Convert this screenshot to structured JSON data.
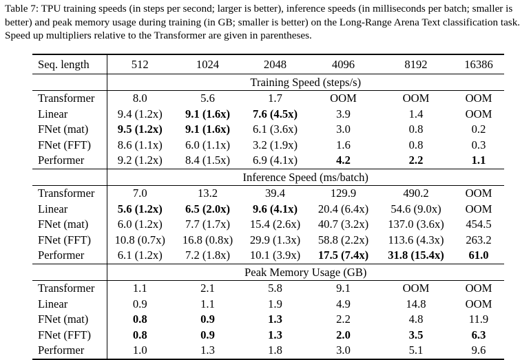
{
  "caption": "Table 7: TPU training speeds (in steps per second; larger is better), inference speeds (in milliseconds per batch; smaller is better) and peak memory usage during training (in GB; smaller is better) on the Long-Range Arena Text classification task. Speed up multipliers relative to the Transformer are given in parentheses.",
  "header": {
    "label": "Seq. length",
    "columns": [
      "512",
      "1024",
      "2048",
      "4096",
      "8192",
      "16386"
    ]
  },
  "sections": [
    {
      "title": "Training Speed (steps/s)",
      "rows": [
        {
          "model": "Transformer",
          "cells": [
            {
              "v": "8.0",
              "b": false
            },
            {
              "v": "5.6",
              "b": false
            },
            {
              "v": "1.7",
              "b": false
            },
            {
              "v": "OOM",
              "b": false
            },
            {
              "v": "OOM",
              "b": false
            },
            {
              "v": "OOM",
              "b": false
            }
          ]
        },
        {
          "model": "Linear",
          "cells": [
            {
              "v": "9.4 (1.2x)",
              "b": false
            },
            {
              "v": "9.1 (1.6x)",
              "b": true
            },
            {
              "v": "7.6 (4.5x)",
              "b": true
            },
            {
              "v": "3.9",
              "b": false
            },
            {
              "v": "1.4",
              "b": false
            },
            {
              "v": "OOM",
              "b": false
            }
          ]
        },
        {
          "model": "FNet (mat)",
          "cells": [
            {
              "v": "9.5 (1.2x)",
              "b": true
            },
            {
              "v": "9.1 (1.6x)",
              "b": true
            },
            {
              "v": "6.1 (3.6x)",
              "b": false
            },
            {
              "v": "3.0",
              "b": false
            },
            {
              "v": "0.8",
              "b": false
            },
            {
              "v": "0.2",
              "b": false
            }
          ]
        },
        {
          "model": "FNet (FFT)",
          "cells": [
            {
              "v": "8.6 (1.1x)",
              "b": false
            },
            {
              "v": "6.0 (1.1x)",
              "b": false
            },
            {
              "v": "3.2 (1.9x)",
              "b": false
            },
            {
              "v": "1.6",
              "b": false
            },
            {
              "v": "0.8",
              "b": false
            },
            {
              "v": "0.3",
              "b": false
            }
          ]
        },
        {
          "model": "Performer",
          "cells": [
            {
              "v": "9.2 (1.2x)",
              "b": false
            },
            {
              "v": "8.4 (1.5x)",
              "b": false
            },
            {
              "v": "6.9 (4.1x)",
              "b": false
            },
            {
              "v": "4.2",
              "b": true
            },
            {
              "v": "2.2",
              "b": true
            },
            {
              "v": "1.1",
              "b": true
            }
          ]
        }
      ]
    },
    {
      "title": "Inference Speed (ms/batch)",
      "rows": [
        {
          "model": "Transformer",
          "cells": [
            {
              "v": "7.0",
              "b": false
            },
            {
              "v": "13.2",
              "b": false
            },
            {
              "v": "39.4",
              "b": false
            },
            {
              "v": "129.9",
              "b": false
            },
            {
              "v": "490.2",
              "b": false
            },
            {
              "v": "OOM",
              "b": false
            }
          ]
        },
        {
          "model": "Linear",
          "cells": [
            {
              "v": "5.6 (1.2x)",
              "b": true
            },
            {
              "v": "6.5 (2.0x)",
              "b": true
            },
            {
              "v": "9.6 (4.1x)",
              "b": true
            },
            {
              "v": "20.4 (6.4x)",
              "b": false
            },
            {
              "v": "54.6 (9.0x)",
              "b": false
            },
            {
              "v": "OOM",
              "b": false
            }
          ]
        },
        {
          "model": "FNet (mat)",
          "cells": [
            {
              "v": "6.0 (1.2x)",
              "b": false
            },
            {
              "v": "7.7 (1.7x)",
              "b": false
            },
            {
              "v": "15.4 (2.6x)",
              "b": false
            },
            {
              "v": "40.7 (3.2x)",
              "b": false
            },
            {
              "v": "137.0 (3.6x)",
              "b": false
            },
            {
              "v": "454.5",
              "b": false
            }
          ]
        },
        {
          "model": "FNet (FFT)",
          "cells": [
            {
              "v": "10.8 (0.7x)",
              "b": false
            },
            {
              "v": "16.8 (0.8x)",
              "b": false
            },
            {
              "v": "29.9 (1.3x)",
              "b": false
            },
            {
              "v": "58.8 (2.2x)",
              "b": false
            },
            {
              "v": "113.6 (4.3x)",
              "b": false
            },
            {
              "v": "263.2",
              "b": false
            }
          ]
        },
        {
          "model": "Performer",
          "cells": [
            {
              "v": "6.1 (1.2x)",
              "b": false
            },
            {
              "v": "7.2 (1.8x)",
              "b": false
            },
            {
              "v": "10.1 (3.9x)",
              "b": false
            },
            {
              "v": "17.5 (7.4x)",
              "b": true
            },
            {
              "v": "31.8 (15.4x)",
              "b": true
            },
            {
              "v": "61.0",
              "b": true
            }
          ]
        }
      ]
    },
    {
      "title": "Peak Memory Usage (GB)",
      "rows": [
        {
          "model": "Transformer",
          "cells": [
            {
              "v": "1.1",
              "b": false
            },
            {
              "v": "2.1",
              "b": false
            },
            {
              "v": "5.8",
              "b": false
            },
            {
              "v": "9.1",
              "b": false
            },
            {
              "v": "OOM",
              "b": false
            },
            {
              "v": "OOM",
              "b": false
            }
          ]
        },
        {
          "model": "Linear",
          "cells": [
            {
              "v": "0.9",
              "b": false
            },
            {
              "v": "1.1",
              "b": false
            },
            {
              "v": "1.9",
              "b": false
            },
            {
              "v": "4.9",
              "b": false
            },
            {
              "v": "14.8",
              "b": false
            },
            {
              "v": "OOM",
              "b": false
            }
          ]
        },
        {
          "model": "FNet (mat)",
          "cells": [
            {
              "v": "0.8",
              "b": true
            },
            {
              "v": "0.9",
              "b": true
            },
            {
              "v": "1.3",
              "b": true
            },
            {
              "v": "2.2",
              "b": false
            },
            {
              "v": "4.8",
              "b": false
            },
            {
              "v": "11.9",
              "b": false
            }
          ]
        },
        {
          "model": "FNet (FFT)",
          "cells": [
            {
              "v": "0.8",
              "b": true
            },
            {
              "v": "0.9",
              "b": true
            },
            {
              "v": "1.3",
              "b": true
            },
            {
              "v": "2.0",
              "b": true
            },
            {
              "v": "3.5",
              "b": true
            },
            {
              "v": "6.3",
              "b": true
            }
          ]
        },
        {
          "model": "Performer",
          "cells": [
            {
              "v": "1.0",
              "b": false
            },
            {
              "v": "1.3",
              "b": false
            },
            {
              "v": "1.8",
              "b": false
            },
            {
              "v": "3.0",
              "b": false
            },
            {
              "v": "5.1",
              "b": false
            },
            {
              "v": "9.6",
              "b": false
            }
          ]
        }
      ]
    }
  ]
}
